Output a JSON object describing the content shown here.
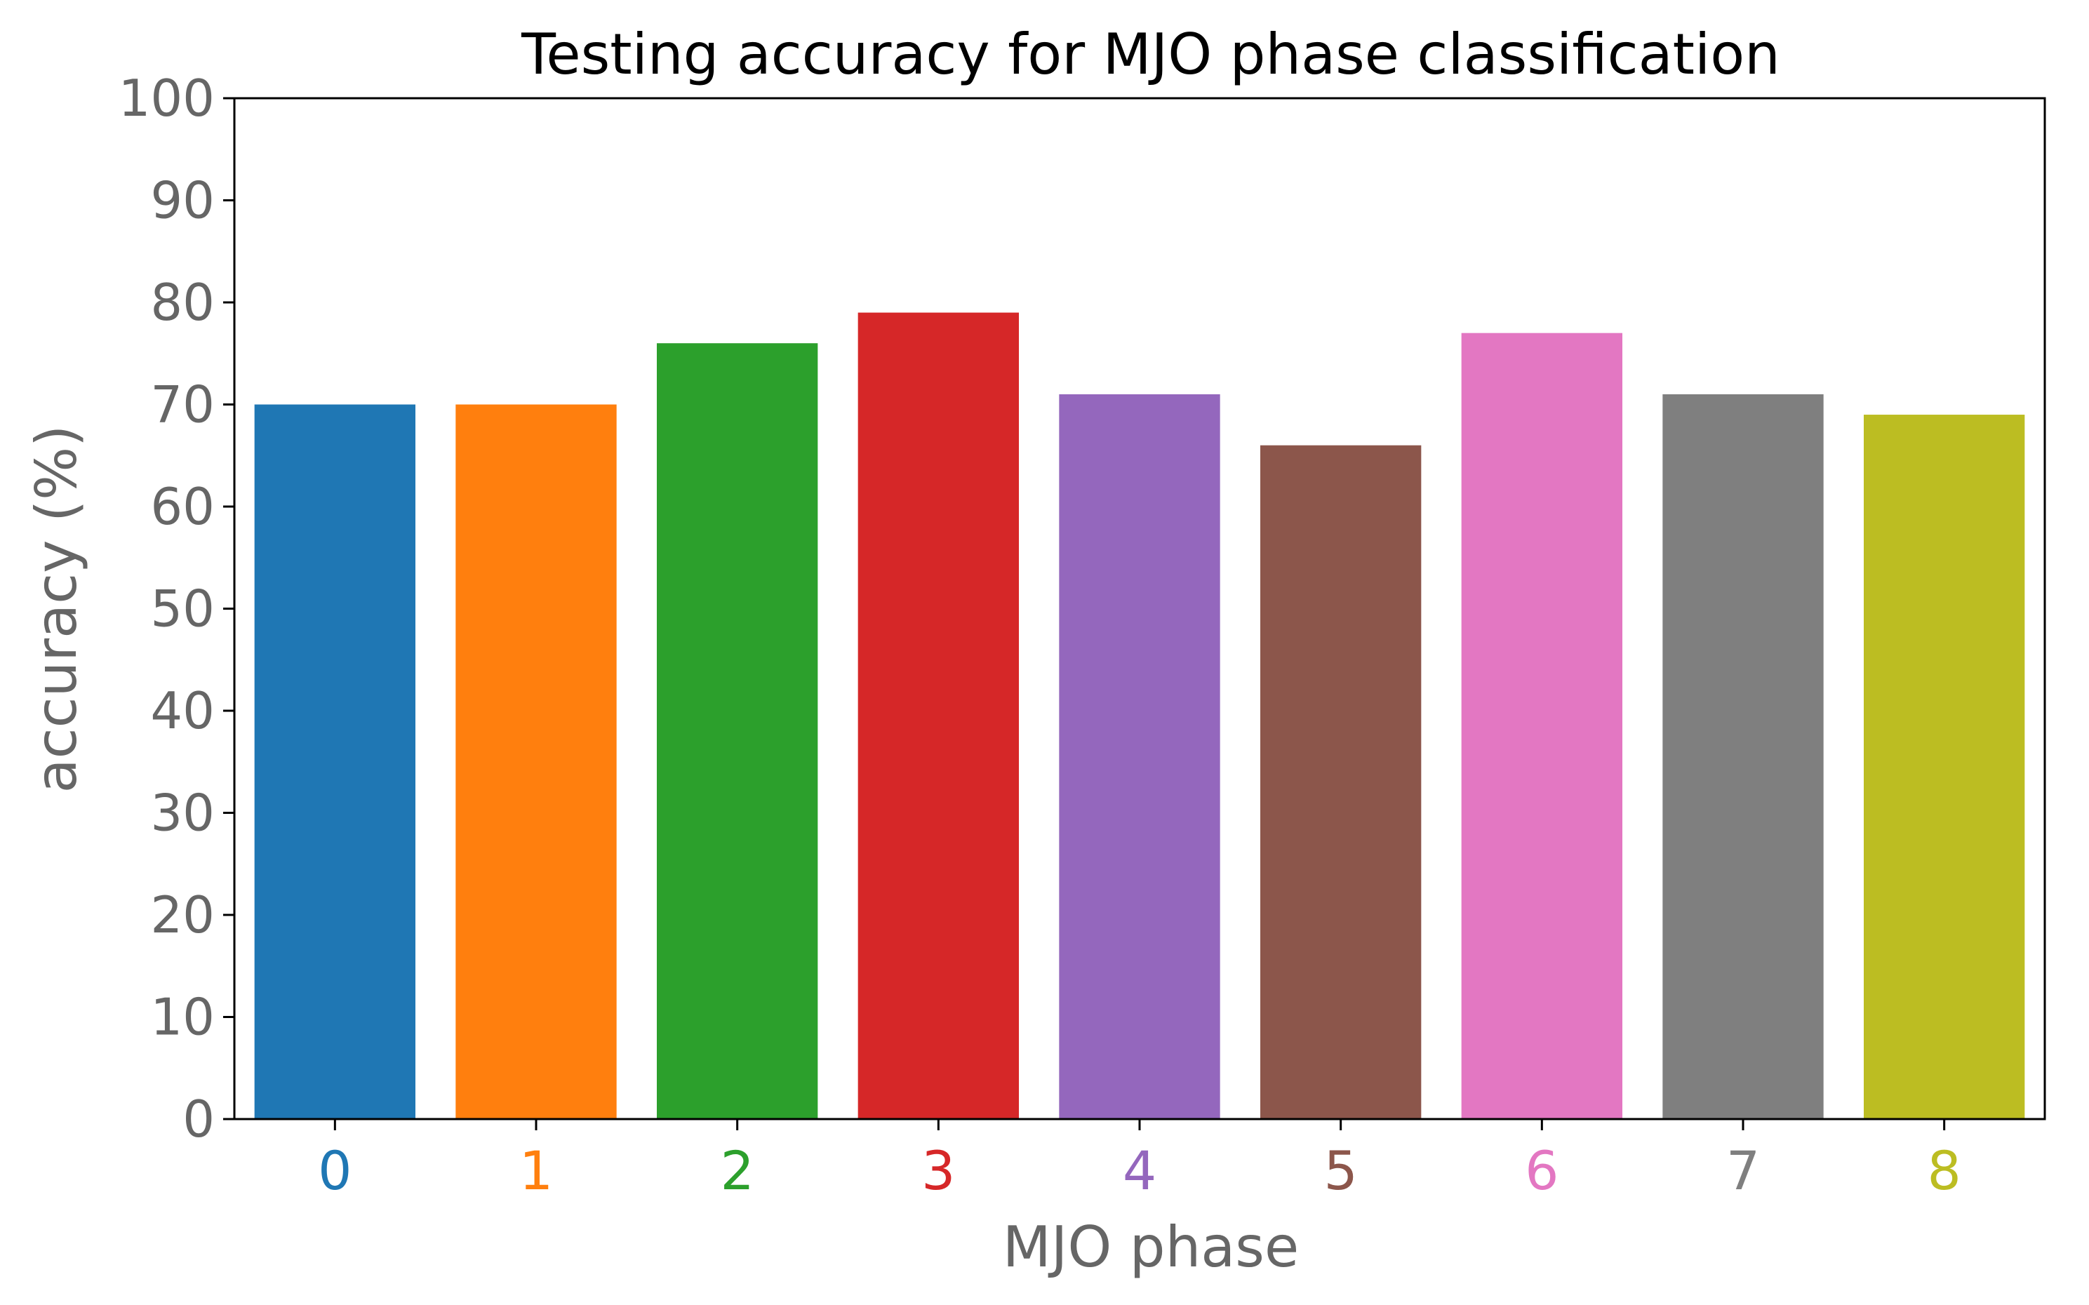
{
  "chart_data": {
    "type": "bar",
    "title": "Testing accuracy for MJO phase classification",
    "xlabel": "MJO phase",
    "ylabel": "accuracy (%)",
    "categories": [
      "0",
      "1",
      "2",
      "3",
      "4",
      "5",
      "6",
      "7",
      "8"
    ],
    "values": [
      70,
      70,
      76,
      79,
      71,
      66,
      77,
      71,
      69
    ],
    "colors": [
      "#1f77b4",
      "#ff7f0e",
      "#2ca02c",
      "#d62728",
      "#9467bd",
      "#8c564b",
      "#e377c2",
      "#7f7f7f",
      "#bcbd22"
    ],
    "ylim": [
      0,
      100
    ],
    "yticks": [
      0,
      10,
      20,
      30,
      40,
      50,
      60,
      70,
      80,
      90,
      100
    ],
    "grid": false,
    "legend": "none"
  }
}
